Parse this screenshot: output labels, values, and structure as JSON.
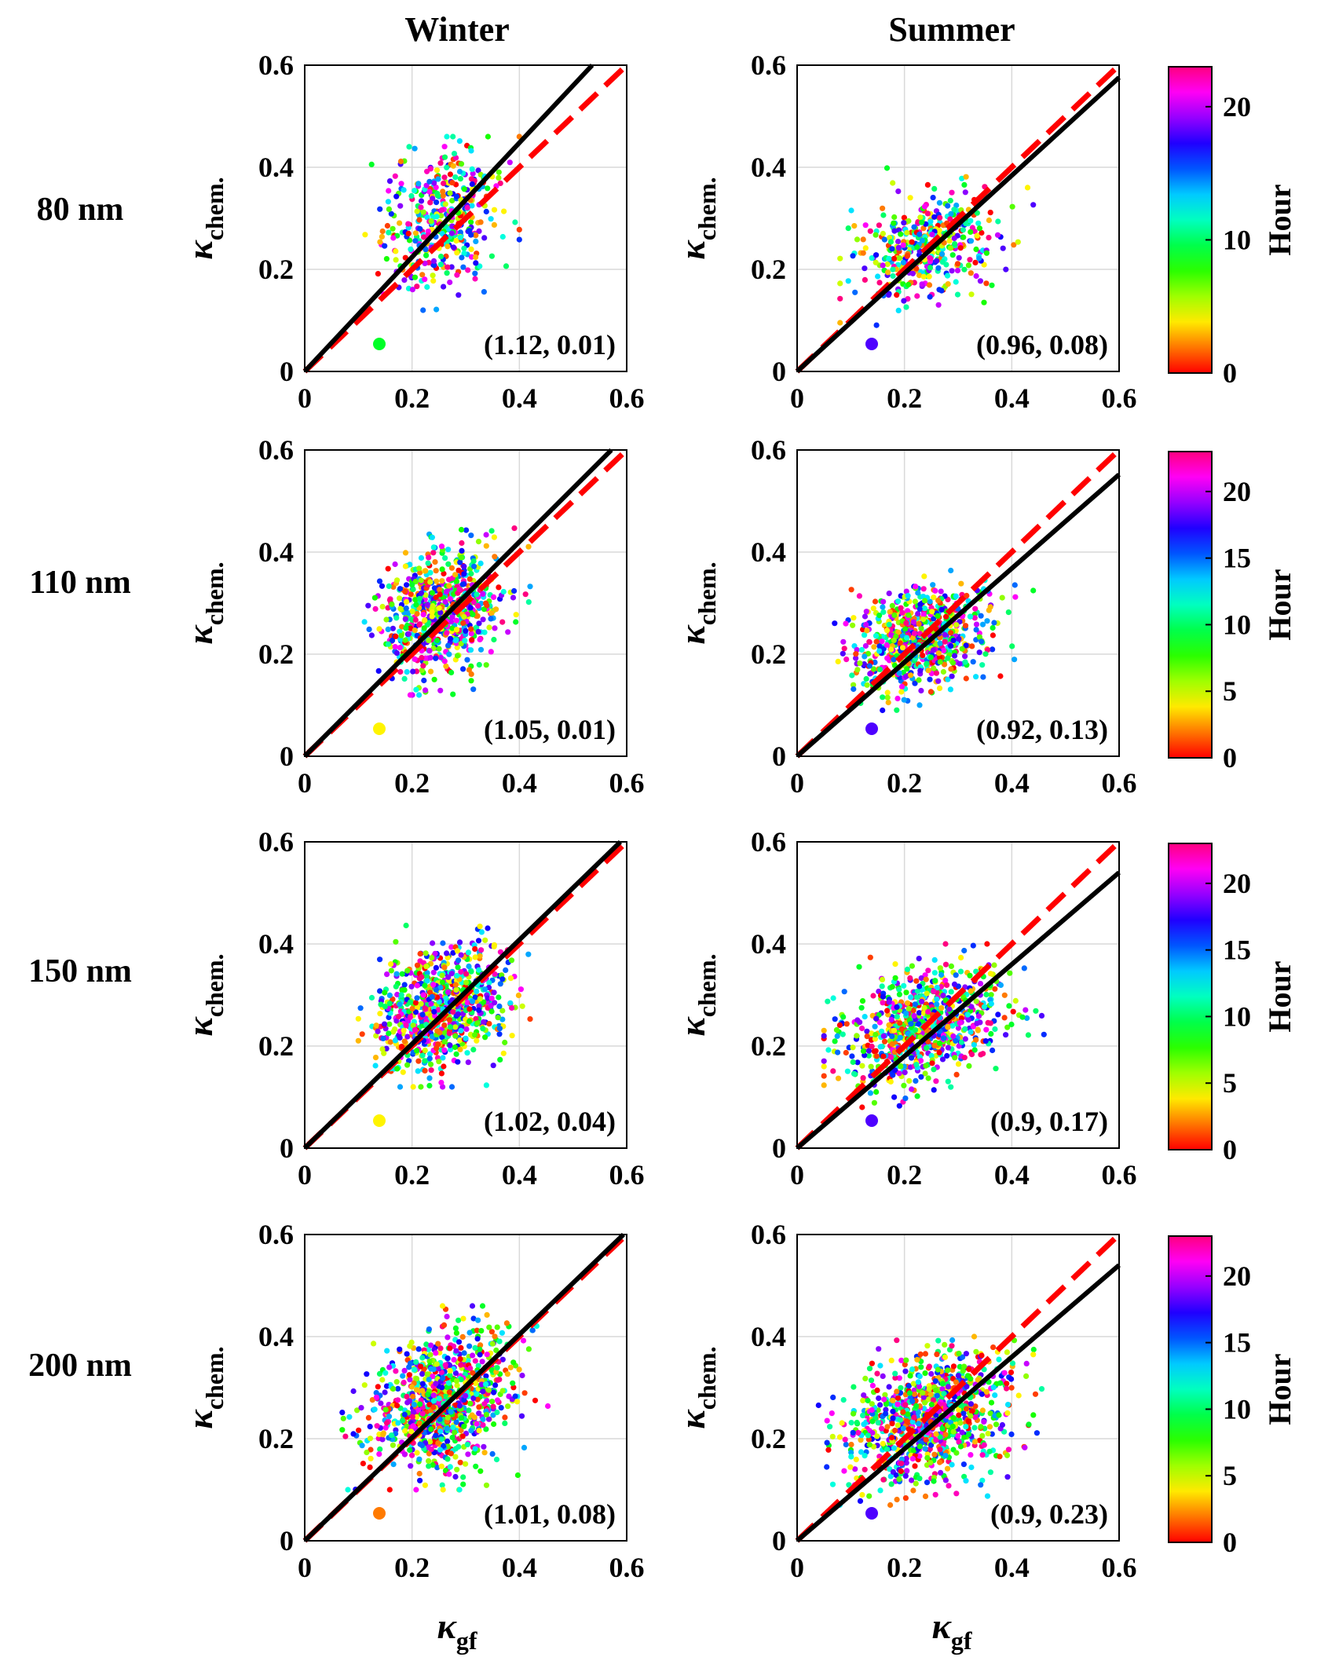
{
  "column_titles": [
    "Winter",
    "Summer"
  ],
  "row_labels": [
    "80 nm",
    "110 nm",
    "150 nm",
    "200 nm"
  ],
  "colorbar": {
    "label": "Hour",
    "range": [
      0,
      23
    ],
    "colormap": "hsv",
    "tick_labels": {
      "80 nm": [
        "0",
        "10",
        "20"
      ],
      "110 nm": [
        "0",
        "5",
        "10",
        "15",
        "20"
      ],
      "150 nm": [
        "0",
        "5",
        "10",
        "15",
        "20"
      ],
      "200 nm": [
        "0",
        "5",
        "10",
        "15",
        "20"
      ]
    }
  },
  "ylabel": {
    "symbol": "κ",
    "subscript": "chem."
  },
  "xlabel": {
    "symbol": "κ",
    "subscript": "gf"
  },
  "colors": {
    "fit_line": "#000000",
    "one_to_one_line": "#ff0000",
    "grid": "#d9d9d9"
  },
  "chart_data": [
    {
      "type": "scatter",
      "season": "Winter",
      "size": "80 nm",
      "xlim": [
        0,
        0.6
      ],
      "ylim": [
        0,
        0.6
      ],
      "x_ticks": [
        "0",
        "0.2",
        "0.4",
        "0.6"
      ],
      "y_ticks": [
        "0",
        "0.2",
        "0.4",
        "0.6"
      ],
      "fit": {
        "slope": 1.12,
        "intercept": 0.01,
        "annotation": "(1.12, 0.01)"
      },
      "marker_hour": 9,
      "cloud": {
        "center": [
          0.255,
          0.295
        ],
        "spread": [
          0.055,
          0.065
        ],
        "n": 400,
        "x_range": [
          0.1,
          0.4
        ],
        "y_range": [
          0.12,
          0.46
        ]
      }
    },
    {
      "type": "scatter",
      "season": "Summer",
      "size": "80 nm",
      "xlim": [
        0,
        0.6
      ],
      "ylim": [
        0,
        0.6
      ],
      "x_ticks": [
        "0",
        "0.2",
        "0.4",
        "0.6"
      ],
      "y_ticks": [
        "0",
        "0.2",
        "0.4",
        "0.6"
      ],
      "fit": {
        "slope": 0.96,
        "intercept": 0.08,
        "annotation": "(0.96, 0.08)"
      },
      "marker_hour": 18,
      "cloud": {
        "center": [
          0.24,
          0.245
        ],
        "spread": [
          0.065,
          0.05
        ],
        "n": 400,
        "x_range": [
          0.08,
          0.44
        ],
        "y_range": [
          0.08,
          0.4
        ]
      }
    },
    {
      "type": "scatter",
      "season": "Winter",
      "size": "110 nm",
      "xlim": [
        0,
        0.6
      ],
      "ylim": [
        0,
        0.6
      ],
      "x_ticks": [
        "0",
        "0.2",
        "0.4",
        "0.6"
      ],
      "y_ticks": [
        "0",
        "0.2",
        "0.4",
        "0.6"
      ],
      "fit": {
        "slope": 1.05,
        "intercept": 0.01,
        "annotation": "(1.05, 0.01)"
      },
      "marker_hour": 4,
      "cloud": {
        "center": [
          0.255,
          0.285
        ],
        "spread": [
          0.055,
          0.06
        ],
        "n": 700,
        "x_range": [
          0.1,
          0.42
        ],
        "y_range": [
          0.12,
          0.46
        ]
      }
    },
    {
      "type": "scatter",
      "season": "Summer",
      "size": "110 nm",
      "xlim": [
        0,
        0.6
      ],
      "ylim": [
        0,
        0.6
      ],
      "x_ticks": [
        "0",
        "0.2",
        "0.4",
        "0.6"
      ],
      "y_ticks": [
        "0",
        "0.2",
        "0.4",
        "0.6"
      ],
      "fit": {
        "slope": 0.92,
        "intercept": 0.13,
        "annotation": "(0.92, 0.13)"
      },
      "marker_hour": 18,
      "cloud": {
        "center": [
          0.235,
          0.235
        ],
        "spread": [
          0.065,
          0.05
        ],
        "n": 700,
        "x_range": [
          0.07,
          0.44
        ],
        "y_range": [
          0.09,
          0.4
        ]
      }
    },
    {
      "type": "scatter",
      "season": "Winter",
      "size": "150 nm",
      "xlim": [
        0,
        0.6
      ],
      "ylim": [
        0,
        0.6
      ],
      "x_ticks": [
        "0",
        "0.2",
        "0.4",
        "0.6"
      ],
      "y_ticks": [
        "0",
        "0.2",
        "0.4",
        "0.6"
      ],
      "fit": {
        "slope": 1.02,
        "intercept": 0.04,
        "annotation": "(1.02, 0.04)"
      },
      "marker_hour": 4,
      "cloud": {
        "center": [
          0.255,
          0.28
        ],
        "spread": [
          0.06,
          0.06
        ],
        "n": 800,
        "x_range": [
          0.1,
          0.42
        ],
        "y_range": [
          0.12,
          0.46
        ]
      }
    },
    {
      "type": "scatter",
      "season": "Summer",
      "size": "150 nm",
      "xlim": [
        0,
        0.6
      ],
      "ylim": [
        0,
        0.6
      ],
      "x_ticks": [
        "0",
        "0.2",
        "0.4",
        "0.6"
      ],
      "y_ticks": [
        "0",
        "0.2",
        "0.4",
        "0.6"
      ],
      "fit": {
        "slope": 0.9,
        "intercept": 0.17,
        "annotation": "(0.9, 0.17)"
      },
      "marker_hour": 18,
      "cloud": {
        "center": [
          0.235,
          0.235
        ],
        "spread": [
          0.07,
          0.055
        ],
        "n": 800,
        "x_range": [
          0.05,
          0.46
        ],
        "y_range": [
          0.08,
          0.4
        ]
      }
    },
    {
      "type": "scatter",
      "season": "Winter",
      "size": "200 nm",
      "xlim": [
        0,
        0.6
      ],
      "ylim": [
        0,
        0.6
      ],
      "x_ticks": [
        "0",
        "0.2",
        "0.4",
        "0.6"
      ],
      "y_ticks": [
        "0",
        "0.2",
        "0.4",
        "0.6"
      ],
      "fit": {
        "slope": 1.01,
        "intercept": 0.08,
        "annotation": "(1.01, 0.08)"
      },
      "marker_hour": 2,
      "cloud": {
        "center": [
          0.26,
          0.275
        ],
        "spread": [
          0.065,
          0.065
        ],
        "n": 900,
        "x_range": [
          0.07,
          0.5
        ],
        "y_range": [
          0.1,
          0.46
        ]
      }
    },
    {
      "type": "scatter",
      "season": "Summer",
      "size": "200 nm",
      "xlim": [
        0,
        0.6
      ],
      "ylim": [
        0,
        0.6
      ],
      "x_ticks": [
        "0",
        "0.2",
        "0.4",
        "0.6"
      ],
      "y_ticks": [
        "0",
        "0.2",
        "0.4",
        "0.6"
      ],
      "fit": {
        "slope": 0.9,
        "intercept": 0.23,
        "annotation": "(0.9, 0.23)"
      },
      "marker_hour": 18,
      "cloud": {
        "center": [
          0.24,
          0.24
        ],
        "spread": [
          0.075,
          0.06
        ],
        "n": 900,
        "x_range": [
          0.04,
          0.52
        ],
        "y_range": [
          0.07,
          0.4
        ]
      }
    }
  ]
}
